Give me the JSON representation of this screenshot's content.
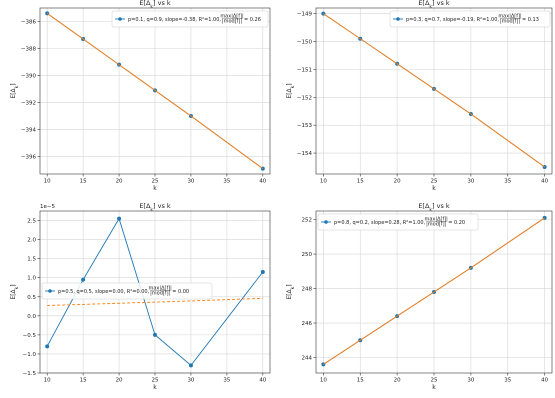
{
  "chart_data": [
    {
      "type": "line",
      "title": "E[Δ_k] vs k",
      "xlabel": "k",
      "ylabel": "E[Δ_k]",
      "x": [
        10,
        15,
        20,
        25,
        30,
        40
      ],
      "xlim": [
        9,
        41
      ],
      "ylim": [
        -397.3,
        -385.0
      ],
      "xticks": [
        10,
        15,
        20,
        25,
        30,
        35,
        40
      ],
      "yticks": [
        -386,
        -388,
        -390,
        -392,
        -394,
        -396
      ],
      "ytick_labels": [
        "−386",
        "−388",
        "−390",
        "−392",
        "−394",
        "−396"
      ],
      "exponent_label": "",
      "grid": true,
      "legend_position": "top-right",
      "legend_text": "p=0.1, q=0.9, slope=-0.38, R²=1.00, max|Δ[f]| / |mod[f]| = 0.26",
      "series": [
        {
          "values": [
            -385.4,
            -387.3,
            -389.2,
            -391.1,
            -393.0,
            -396.9
          ],
          "color": "#1f77b4",
          "marker": "o"
        },
        {
          "values": [
            -385.4,
            -387.3,
            -389.2,
            -391.1,
            -393.0,
            -396.9
          ],
          "color": "#ff7f0e",
          "line": "solid"
        }
      ],
      "legend_fraction": {
        "num": "max|Δ[f]|",
        "den": "|mod[f]|",
        "value": "= 0.26",
        "prefix": "p=0.1, q=0.9, slope=-0.38, R²=1.00, "
      }
    },
    {
      "type": "line",
      "title": "E[Δ_k] vs k",
      "xlabel": "k",
      "ylabel": "E[Δ_k]",
      "x": [
        10,
        15,
        20,
        25,
        30,
        40
      ],
      "xlim": [
        9,
        41
      ],
      "ylim": [
        -154.75,
        -148.8
      ],
      "xticks": [
        10,
        15,
        20,
        25,
        30,
        35,
        40
      ],
      "yticks": [
        -149,
        -150,
        -151,
        -152,
        -153,
        -154
      ],
      "ytick_labels": [
        "−149",
        "−150",
        "−151",
        "−152",
        "−153",
        "−154"
      ],
      "exponent_label": "",
      "grid": true,
      "legend_position": "top-right",
      "series": [
        {
          "values": [
            -149.0,
            -149.9,
            -150.8,
            -151.7,
            -152.6,
            -154.5
          ],
          "color": "#1f77b4",
          "marker": "o"
        },
        {
          "values": [
            -149.0,
            -149.9,
            -150.8,
            -151.7,
            -152.6,
            -154.5
          ],
          "color": "#ff7f0e",
          "line": "solid"
        }
      ],
      "legend_fraction": {
        "num": "max|Δ[f]|",
        "den": "|mod[f]|",
        "value": "= 0.13",
        "prefix": "p=0.3, q=0.7, slope=-0.19, R²=1.00, "
      }
    },
    {
      "type": "line",
      "title": "E[Δ_k] vs k",
      "xlabel": "k",
      "ylabel": "E[Δ_k]",
      "x": [
        10,
        15,
        20,
        25,
        30,
        40
      ],
      "xlim": [
        9,
        41
      ],
      "ylim": [
        -1.5,
        2.75
      ],
      "xticks": [
        10,
        15,
        20,
        25,
        30,
        35,
        40
      ],
      "yticks": [
        -1.5,
        -1.0,
        -0.5,
        0.0,
        0.5,
        1.0,
        1.5,
        2.0,
        2.5
      ],
      "ytick_labels": [
        "−1.5",
        "−1.0",
        "−0.5",
        "0.0",
        "0.5",
        "1.0",
        "1.5",
        "2.0",
        "2.5"
      ],
      "exponent_label": "1e−5",
      "grid": true,
      "legend_position": "center-left",
      "series": [
        {
          "values": [
            -0.8,
            0.95,
            2.55,
            -0.5,
            -1.3,
            1.15
          ],
          "color": "#1f77b4",
          "marker": "o"
        },
        {
          "values": [
            0.27,
            0.3,
            0.33,
            0.36,
            0.39,
            0.46
          ],
          "color": "#ff7f0e",
          "line": "dashed"
        }
      ],
      "legend_fraction": {
        "num": "max|Δ[f]|",
        "den": "|mod[f]|",
        "value": "= 0.00",
        "prefix": "p=0.5, q=0.5, slope=0.00, R²=0.00, "
      }
    },
    {
      "type": "line",
      "title": "E[Δ_k] vs k",
      "xlabel": "k",
      "ylabel": "E[Δ_k]",
      "x": [
        10,
        15,
        20,
        25,
        30,
        40
      ],
      "xlim": [
        9,
        41
      ],
      "ylim": [
        243.1,
        252.5
      ],
      "xticks": [
        10,
        15,
        20,
        25,
        30,
        35,
        40
      ],
      "yticks": [
        244,
        246,
        248,
        250,
        252
      ],
      "ytick_labels": [
        "244",
        "246",
        "248",
        "250",
        "252"
      ],
      "exponent_label": "",
      "grid": true,
      "legend_position": "top-left",
      "series": [
        {
          "values": [
            243.6,
            245.0,
            246.4,
            247.8,
            249.2,
            252.1
          ],
          "color": "#1f77b4",
          "marker": "o"
        },
        {
          "values": [
            243.6,
            245.0,
            246.4,
            247.8,
            249.2,
            252.1
          ],
          "color": "#ff7f0e",
          "line": "solid"
        }
      ],
      "legend_fraction": {
        "num": "max|Δ[f]|",
        "den": "|mod[f]|",
        "value": "= 0.20",
        "prefix": "p=0.8, q=0.2, slope=0.28, R²=1.00, "
      }
    }
  ]
}
